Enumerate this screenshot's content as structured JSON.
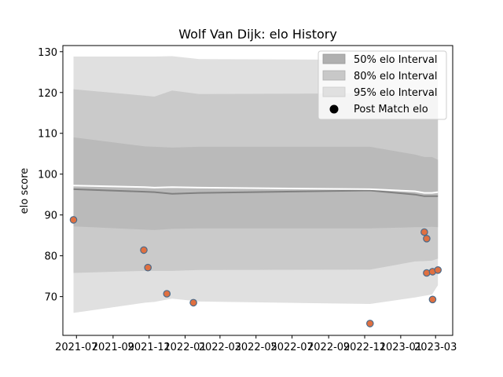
{
  "chart_data": {
    "type": "line",
    "title": "Wolf Van Dijk: elo History",
    "xlabel": "",
    "ylabel": "elo score",
    "xlim": [
      "2021-06-08",
      "2023-03-30"
    ],
    "ylim": [
      60.5,
      131.5
    ],
    "y_ticks": [
      70,
      80,
      90,
      100,
      110,
      120,
      130
    ],
    "x_ticks": [
      "2021-07",
      "2021-09",
      "2021-11",
      "2022-01",
      "2022-03",
      "2022-05",
      "2022-07",
      "2022-09",
      "2022-11",
      "2023-01",
      "2023-03"
    ],
    "x_tick_dates": [
      "2021-07-01",
      "2021-09-01",
      "2021-11-01",
      "2022-01-01",
      "2022-03-01",
      "2022-05-01",
      "2022-07-01",
      "2022-09-01",
      "2022-11-01",
      "2023-01-01",
      "2023-03-01"
    ],
    "grid": false,
    "legend": {
      "placement": "top-right",
      "entries": [
        "50% elo Interval",
        "80% elo Interval",
        "95% elo Interval",
        "Post Match elo"
      ]
    },
    "band_dates": [
      "2021-06-26",
      "2021-10-25",
      "2021-11-10",
      "2021-12-10",
      "2022-01-25",
      "2022-11-10",
      "2023-01-25",
      "2023-02-10",
      "2023-02-23",
      "2023-03-05"
    ],
    "series": [
      {
        "name": "95% elo Interval",
        "kind": "band",
        "color": "#e0e0e0",
        "upper": [
          128.8,
          128.8,
          128.8,
          128.9,
          128.2,
          128.0,
          128.0,
          128.0,
          128.0,
          128.0
        ],
        "lower": [
          66.0,
          68.5,
          68.7,
          69.5,
          68.8,
          68.2,
          69.8,
          70.2,
          70.5,
          72.8
        ]
      },
      {
        "name": "80% elo Interval",
        "kind": "band",
        "color": "#cacaca",
        "upper": [
          120.8,
          119.2,
          119.0,
          120.5,
          119.6,
          119.8,
          119.7,
          119.7,
          119.7,
          119.7
        ],
        "lower": [
          75.8,
          76.3,
          76.3,
          76.3,
          76.5,
          76.6,
          78.6,
          78.7,
          78.8,
          79.3
        ]
      },
      {
        "name": "50% elo Interval",
        "kind": "band",
        "color": "#bababa",
        "upper": [
          109.0,
          106.8,
          106.7,
          106.5,
          106.7,
          106.7,
          104.8,
          104.2,
          104.2,
          103.5
        ],
        "lower": [
          87.2,
          86.4,
          86.3,
          86.6,
          86.7,
          86.7,
          87.0,
          87.0,
          87.1,
          87.0
        ]
      },
      {
        "name": "",
        "kind": "line",
        "color": "#808080",
        "values": [
          96.3,
          95.7,
          95.6,
          95.2,
          95.4,
          96.0,
          95.0,
          94.6,
          94.6,
          94.6
        ]
      },
      {
        "name": "",
        "kind": "line",
        "color": "#ffffff",
        "values": [
          97.2,
          96.8,
          96.7,
          96.8,
          96.7,
          96.3,
          95.8,
          95.4,
          95.4,
          95.6
        ]
      }
    ],
    "points": {
      "name": "Post Match elo",
      "fill": "#e07040",
      "edge": "#4a6a8a",
      "x": [
        "2021-06-26",
        "2021-10-23",
        "2021-10-30",
        "2021-12-01",
        "2022-01-15",
        "2022-11-10",
        "2023-02-10",
        "2023-02-14",
        "2023-02-14",
        "2023-02-24",
        "2023-02-24",
        "2023-03-05"
      ],
      "y": [
        88.8,
        81.4,
        77.1,
        70.7,
        68.5,
        63.4,
        85.8,
        84.2,
        75.8,
        76.1,
        69.3,
        76.5
      ]
    }
  }
}
